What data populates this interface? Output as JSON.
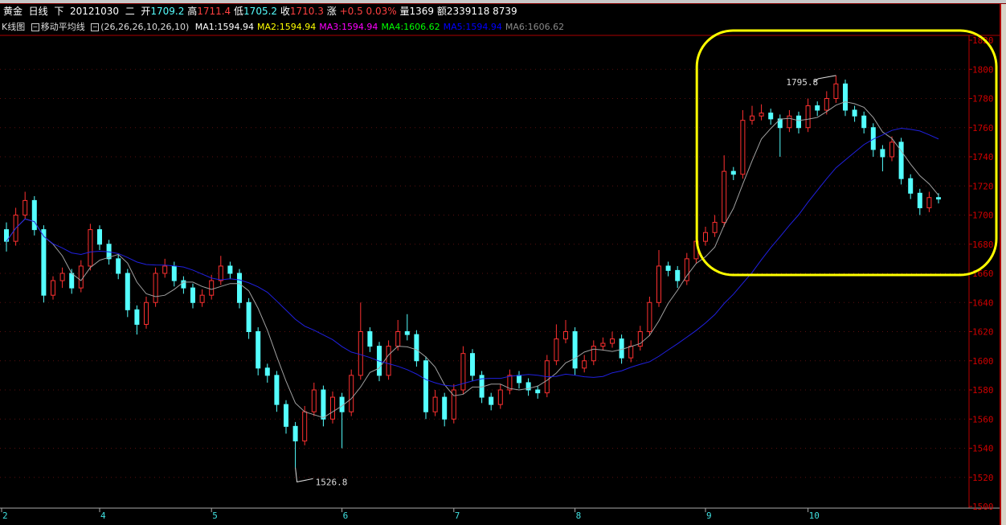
{
  "header": {
    "symbol": "黄金",
    "period": "日线",
    "direction": "下",
    "date": "20121030",
    "weekday": "二",
    "open_label": "开",
    "open": "1709.2",
    "high_label": "高",
    "high": "1711.4",
    "low_label": "低",
    "low": "1705.2",
    "close_label": "收",
    "close": "1710.3",
    "change_label": "涨",
    "change": "+0.5",
    "change_pct": "0.03%",
    "volume_label": "量",
    "volume": "1369",
    "amount_label": "额",
    "amount": "2339118 8739"
  },
  "indicator_bar": {
    "chart_type": "K线图",
    "indicator_name": "移动平均线",
    "params": "(26,26,26,10,26,10)",
    "ma": [
      {
        "label": "MA1:1594.94",
        "color": "#ffffff"
      },
      {
        "label": "MA2:1594.94",
        "color": "#ffff00"
      },
      {
        "label": "MA3:1594.94",
        "color": "#ff00ff"
      },
      {
        "label": "MA4:1606.62",
        "color": "#00ff00"
      },
      {
        "label": "MA5:1594.94",
        "color": "#0000ff"
      },
      {
        "label": "MA6:1606.62",
        "color": "#888888"
      }
    ]
  },
  "chart_data": {
    "type": "candlestick",
    "ylim": [
      1500,
      1820
    ],
    "yticks": [
      1500,
      1520,
      1540,
      1560,
      1580,
      1600,
      1620,
      1640,
      1660,
      1680,
      1700,
      1720,
      1740,
      1760,
      1780,
      1800,
      1820
    ],
    "xtick_labels": [
      "2",
      "4",
      "5",
      "6",
      "7",
      "8",
      "9",
      "10"
    ],
    "xtick_index": [
      0,
      10,
      22,
      36,
      48,
      61,
      75,
      86
    ],
    "grid": true,
    "up_color": "#ff3030",
    "down_color": "#54ffff",
    "ma_short_color": "#a0a0a0",
    "ma_long_color": "#2020e0",
    "ma_short_period": 5,
    "ma_long_period": 20,
    "candles_ohlc": [
      [
        1690,
        1695,
        1675,
        1682
      ],
      [
        1682,
        1705,
        1679,
        1700
      ],
      [
        1700,
        1716,
        1697,
        1710
      ],
      [
        1710,
        1713,
        1686,
        1690
      ],
      [
        1690,
        1693,
        1640,
        1645
      ],
      [
        1645,
        1658,
        1642,
        1655
      ],
      [
        1655,
        1664,
        1650,
        1660
      ],
      [
        1660,
        1663,
        1646,
        1650
      ],
      [
        1650,
        1669,
        1647,
        1665
      ],
      [
        1665,
        1694,
        1662,
        1690
      ],
      [
        1690,
        1693,
        1676,
        1680
      ],
      [
        1680,
        1683,
        1666,
        1670
      ],
      [
        1670,
        1673,
        1656,
        1660
      ],
      [
        1660,
        1663,
        1630,
        1635
      ],
      [
        1635,
        1638,
        1618,
        1625
      ],
      [
        1625,
        1644,
        1622,
        1640
      ],
      [
        1640,
        1664,
        1637,
        1660
      ],
      [
        1660,
        1670,
        1657,
        1665
      ],
      [
        1665,
        1668,
        1651,
        1655
      ],
      [
        1655,
        1658,
        1646,
        1650
      ],
      [
        1650,
        1653,
        1636,
        1640
      ],
      [
        1640,
        1649,
        1637,
        1645
      ],
      [
        1645,
        1659,
        1642,
        1655
      ],
      [
        1655,
        1672,
        1652,
        1665
      ],
      [
        1665,
        1668,
        1656,
        1660
      ],
      [
        1660,
        1663,
        1636,
        1640
      ],
      [
        1640,
        1643,
        1615,
        1620
      ],
      [
        1620,
        1623,
        1590,
        1595
      ],
      [
        1595,
        1598,
        1585,
        1590
      ],
      [
        1590,
        1593,
        1565,
        1570
      ],
      [
        1570,
        1573,
        1550,
        1555
      ],
      [
        1555,
        1558,
        1526.8,
        1545
      ],
      [
        1545,
        1569,
        1542,
        1565
      ],
      [
        1565,
        1585,
        1562,
        1580
      ],
      [
        1580,
        1583,
        1555,
        1560
      ],
      [
        1560,
        1579,
        1557,
        1575
      ],
      [
        1575,
        1578,
        1540,
        1565
      ],
      [
        1565,
        1594,
        1562,
        1590
      ],
      [
        1590,
        1640,
        1587,
        1620
      ],
      [
        1620,
        1623,
        1606,
        1610
      ],
      [
        1610,
        1613,
        1586,
        1590
      ],
      [
        1590,
        1614,
        1587,
        1610
      ],
      [
        1610,
        1628,
        1607,
        1620
      ],
      [
        1620,
        1632,
        1614,
        1618
      ],
      [
        1618,
        1621,
        1596,
        1600
      ],
      [
        1600,
        1603,
        1560,
        1565
      ],
      [
        1565,
        1580,
        1562,
        1575
      ],
      [
        1575,
        1578,
        1555,
        1560
      ],
      [
        1560,
        1584,
        1557,
        1580
      ],
      [
        1580,
        1610,
        1577,
        1605
      ],
      [
        1605,
        1608,
        1586,
        1590
      ],
      [
        1590,
        1593,
        1571,
        1575
      ],
      [
        1575,
        1578,
        1566,
        1570
      ],
      [
        1570,
        1584,
        1567,
        1580
      ],
      [
        1580,
        1594,
        1577,
        1590
      ],
      [
        1590,
        1593,
        1581,
        1585
      ],
      [
        1585,
        1588,
        1576,
        1580
      ],
      [
        1580,
        1583,
        1574,
        1578
      ],
      [
        1578,
        1604,
        1575,
        1600
      ],
      [
        1600,
        1625,
        1597,
        1615
      ],
      [
        1615,
        1628,
        1612,
        1620
      ],
      [
        1620,
        1623,
        1590,
        1595
      ],
      [
        1595,
        1604,
        1592,
        1600
      ],
      [
        1600,
        1614,
        1597,
        1610
      ],
      [
        1610,
        1616,
        1607,
        1612
      ],
      [
        1612,
        1620,
        1609,
        1615
      ],
      [
        1615,
        1618,
        1598,
        1602
      ],
      [
        1602,
        1614,
        1599,
        1610
      ],
      [
        1610,
        1624,
        1607,
        1620
      ],
      [
        1620,
        1644,
        1617,
        1640
      ],
      [
        1640,
        1676,
        1637,
        1665
      ],
      [
        1665,
        1668,
        1658,
        1662
      ],
      [
        1662,
        1665,
        1650,
        1655
      ],
      [
        1655,
        1674,
        1652,
        1670
      ],
      [
        1670,
        1686,
        1667,
        1682
      ],
      [
        1682,
        1692,
        1679,
        1688
      ],
      [
        1688,
        1700,
        1685,
        1695
      ],
      [
        1695,
        1741,
        1692,
        1730
      ],
      [
        1730,
        1733,
        1724,
        1728
      ],
      [
        1728,
        1772,
        1725,
        1765
      ],
      [
        1765,
        1775,
        1762,
        1768
      ],
      [
        1768,
        1776,
        1765,
        1770
      ],
      [
        1770,
        1773,
        1762,
        1766
      ],
      [
        1766,
        1769,
        1740,
        1760
      ],
      [
        1760,
        1772,
        1757,
        1768
      ],
      [
        1768,
        1771,
        1756,
        1760
      ],
      [
        1760,
        1780,
        1757,
        1775
      ],
      [
        1775,
        1778,
        1768,
        1772
      ],
      [
        1772,
        1785,
        1769,
        1780
      ],
      [
        1780,
        1795.8,
        1777,
        1790
      ],
      [
        1790,
        1793,
        1768,
        1772
      ],
      [
        1772,
        1775,
        1764,
        1768
      ],
      [
        1768,
        1771,
        1756,
        1760
      ],
      [
        1760,
        1763,
        1740,
        1745
      ],
      [
        1745,
        1748,
        1730,
        1740
      ],
      [
        1740,
        1754,
        1737,
        1750
      ],
      [
        1750,
        1753,
        1721,
        1725
      ],
      [
        1725,
        1728,
        1711,
        1715
      ],
      [
        1715,
        1718,
        1700,
        1705
      ],
      [
        1705,
        1716,
        1702,
        1712
      ],
      [
        1712,
        1715,
        1708,
        1711
      ]
    ],
    "annotations": [
      {
        "text": "1795.8",
        "index": 89,
        "value": 1795.8
      },
      {
        "text": "1526.8",
        "index": 31,
        "value": 1526.8
      }
    ],
    "highlight": {
      "color": "#ffff00",
      "from_index": 77,
      "to_index": 100
    }
  }
}
